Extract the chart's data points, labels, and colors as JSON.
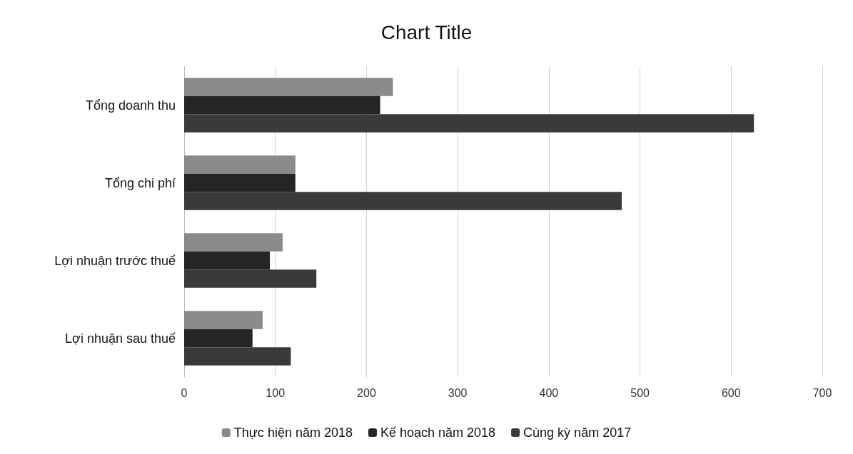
{
  "chart_data": {
    "type": "bar",
    "orientation": "horizontal",
    "title": "Chart Title",
    "categories": [
      "Tổng doanh thu",
      "Tổng chi phí",
      "Lợi nhuận trước thuế",
      "Lợi nhuận sau thuế"
    ],
    "series": [
      {
        "name": "Thực hiện năm 2018",
        "color": "#8a8a8a",
        "values": [
          229,
          122,
          108,
          86
        ]
      },
      {
        "name": "Kế hoạch năm 2018",
        "color": "#252525",
        "values": [
          215,
          122,
          94,
          75
        ]
      },
      {
        "name": "Cùng kỳ năm 2017",
        "color": "#3a3a3a",
        "values": [
          625,
          480,
          145,
          117
        ]
      }
    ],
    "xlim": [
      0,
      700
    ],
    "xticks": [
      0,
      100,
      200,
      300,
      400,
      500,
      600,
      700
    ],
    "grid": "x",
    "legend": "bottom"
  }
}
